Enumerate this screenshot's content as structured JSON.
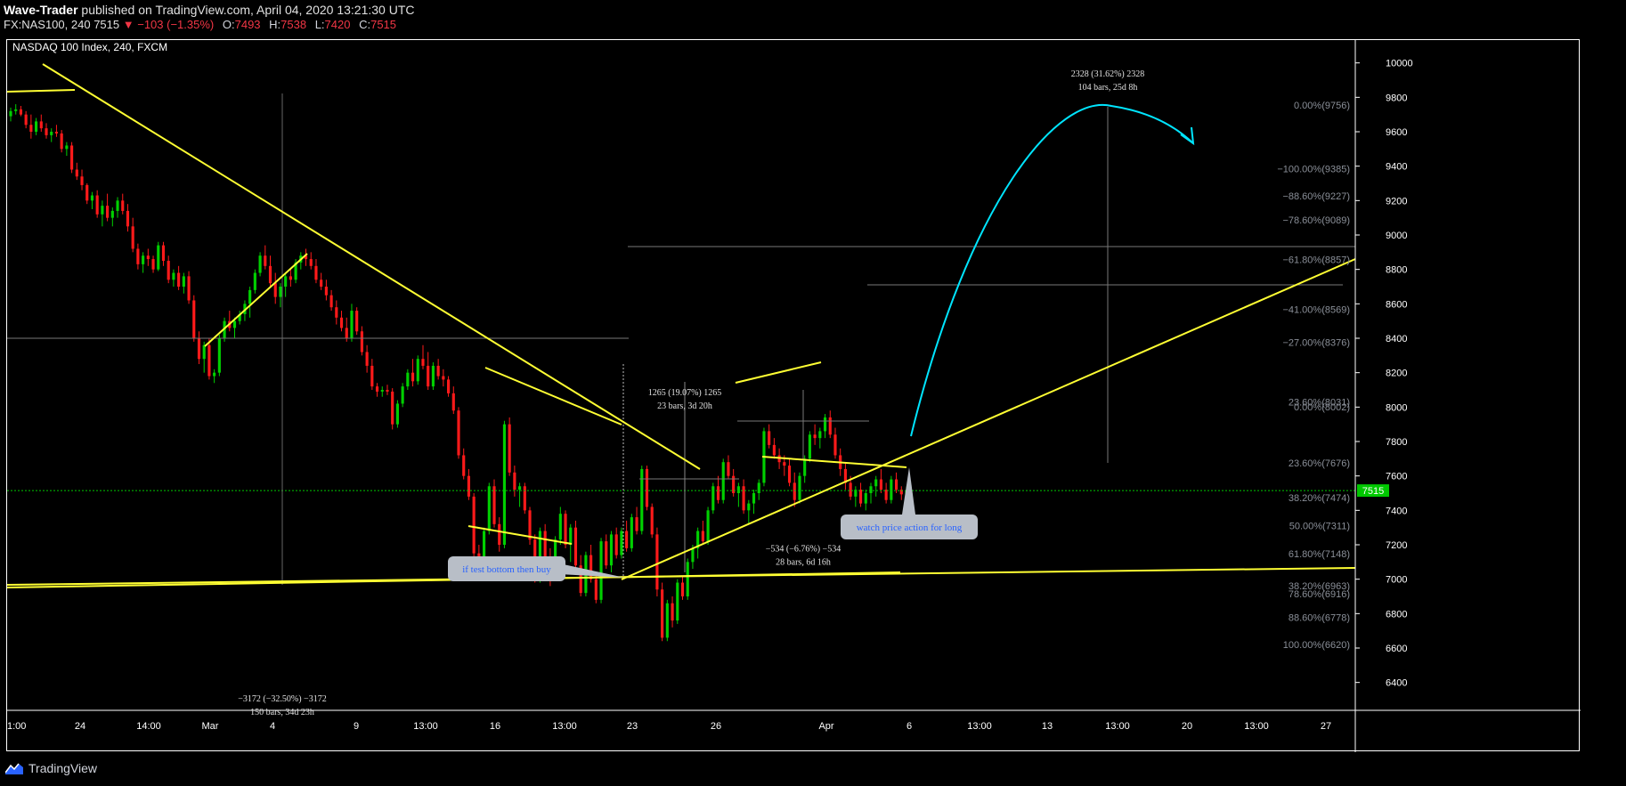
{
  "header": {
    "author": "Wave-Trader",
    "published_text": "published on TradingView.com, April 04, 2020 13:21:30 UTC",
    "symbol_line": "FX:NAS100, 240",
    "last": "7515",
    "change": "−103 (−1.35%)",
    "o_label": "O:",
    "o": "7493",
    "h_label": "H:",
    "h": "7538",
    "l_label": "L:",
    "l": "7420",
    "c_label": "C:",
    "c": "7515"
  },
  "chart_title": "NASDAQ 100 Index, 240, FXCM",
  "footer": {
    "brand": "TradingView"
  },
  "colors": {
    "up": "#00d000",
    "down": "#ff1a1a",
    "trend": "#ffff33",
    "projection": "#00e5ff",
    "price_line": "#00c800",
    "note_bg": "#b8bec7",
    "note_text": "#2962ff"
  },
  "chart_data": {
    "type": "candlestick",
    "price_axis": {
      "min": 6300,
      "max": 10050,
      "ticks": [
        6400,
        6600,
        6800,
        7000,
        7200,
        7400,
        7600,
        7800,
        8000,
        8200,
        8400,
        8600,
        8800,
        9000,
        9200,
        9400,
        9600,
        9800,
        10000
      ]
    },
    "time_axis": [
      "1:00",
      "24",
      "14:00",
      "Mar",
      "4",
      "9",
      "13:00",
      "16",
      "13:00",
      "23",
      "26",
      "Apr",
      "6",
      "13:00",
      "13",
      "13:00",
      "20",
      "13:00",
      "27"
    ],
    "current_price": 7515,
    "fib_levels": [
      {
        "label": "0.00%(9756)",
        "price": 9756
      },
      {
        "label": "−100.00%(9385)",
        "price": 9385
      },
      {
        "label": "−88.60%(9227)",
        "price": 9227
      },
      {
        "label": "−78.60%(9089)",
        "price": 9089
      },
      {
        "label": "−61.80%(8857)",
        "price": 8857
      },
      {
        "label": "−41.00%(8569)",
        "price": 8569
      },
      {
        "label": "−27.00%(8376)",
        "price": 8376
      },
      {
        "label": "23.60%(8031)",
        "price": 8031
      },
      {
        "label": "0.00%(8002)",
        "price": 8002
      },
      {
        "label": "23.60%(7676)",
        "price": 7676
      },
      {
        "label": "38.20%(7474)",
        "price": 7474
      },
      {
        "label": "50.00%(7311)",
        "price": 7311
      },
      {
        "label": "61.80%(7148)",
        "price": 7148
      },
      {
        "label": "38.20%(6963)",
        "price": 6963
      },
      {
        "label": "78.60%(6916)",
        "price": 6916
      },
      {
        "label": "88.60%(6778)",
        "price": 6778
      },
      {
        "label": "100.00%(6620)",
        "price": 6620
      }
    ],
    "measures": [
      {
        "line1": "2328 (31.62%) 2328",
        "line2": "104 bars, 25d 8h",
        "price": 9920
      },
      {
        "line1": "1265 (19.07%) 1265",
        "line2": "23 bars, 3d 20h",
        "price": 8070
      },
      {
        "line1": "−534 (−6.76%) −534",
        "line2": "28 bars, 6d 16h",
        "price": 7160
      },
      {
        "line1": "−3172 (−32.50%) −3172",
        "line2": "150 bars, 34d 23h",
        "price": 6290
      }
    ],
    "notes": [
      {
        "text": "if test bottom then buy"
      },
      {
        "text": "watch price action for long"
      }
    ],
    "candles": [
      [
        9690,
        9740,
        9660,
        9720
      ],
      [
        9720,
        9760,
        9700,
        9730
      ],
      [
        9730,
        9750,
        9690,
        9700
      ],
      [
        9700,
        9720,
        9620,
        9640
      ],
      [
        9640,
        9700,
        9560,
        9600
      ],
      [
        9600,
        9680,
        9580,
        9660
      ],
      [
        9660,
        9700,
        9600,
        9620
      ],
      [
        9620,
        9650,
        9560,
        9580
      ],
      [
        9580,
        9620,
        9540,
        9600
      ],
      [
        9600,
        9640,
        9570,
        9590
      ],
      [
        9590,
        9610,
        9480,
        9500
      ],
      [
        9500,
        9540,
        9460,
        9520
      ],
      [
        9520,
        9540,
        9360,
        9380
      ],
      [
        9380,
        9420,
        9320,
        9340
      ],
      [
        9340,
        9380,
        9260,
        9290
      ],
      [
        9290,
        9300,
        9180,
        9200
      ],
      [
        9200,
        9250,
        9150,
        9230
      ],
      [
        9230,
        9260,
        9100,
        9120
      ],
      [
        9120,
        9200,
        9050,
        9170
      ],
      [
        9170,
        9240,
        9080,
        9100
      ],
      [
        9100,
        9160,
        9050,
        9140
      ],
      [
        9140,
        9220,
        9100,
        9200
      ],
      [
        9200,
        9240,
        9120,
        9140
      ],
      [
        9140,
        9180,
        9020,
        9050
      ],
      [
        9050,
        9100,
        8900,
        8920
      ],
      [
        8920,
        8950,
        8800,
        8830
      ],
      [
        8830,
        8900,
        8780,
        8880
      ],
      [
        8880,
        8920,
        8820,
        8860
      ],
      [
        8860,
        8880,
        8780,
        8800
      ],
      [
        8800,
        8960,
        8790,
        8940
      ],
      [
        8940,
        8960,
        8820,
        8850
      ],
      [
        8850,
        8880,
        8720,
        8740
      ],
      [
        8740,
        8800,
        8700,
        8780
      ],
      [
        8780,
        8820,
        8680,
        8700
      ],
      [
        8700,
        8780,
        8660,
        8760
      ],
      [
        8760,
        8790,
        8600,
        8620
      ],
      [
        8620,
        8650,
        8380,
        8400
      ],
      [
        8400,
        8440,
        8250,
        8280
      ],
      [
        8280,
        8380,
        8200,
        8360
      ],
      [
        8360,
        8400,
        8160,
        8180
      ],
      [
        8180,
        8220,
        8140,
        8200
      ],
      [
        8200,
        8420,
        8180,
        8400
      ],
      [
        8400,
        8520,
        8380,
        8500
      ],
      [
        8500,
        8560,
        8440,
        8460
      ],
      [
        8460,
        8520,
        8400,
        8500
      ],
      [
        8500,
        8560,
        8480,
        8540
      ],
      [
        8540,
        8620,
        8500,
        8600
      ],
      [
        8600,
        8700,
        8520,
        8680
      ],
      [
        8680,
        8800,
        8660,
        8780
      ],
      [
        8780,
        8900,
        8760,
        8880
      ],
      [
        8880,
        8940,
        8800,
        8820
      ],
      [
        8820,
        8880,
        8700,
        8720
      ],
      [
        8720,
        8780,
        8600,
        8640
      ],
      [
        8640,
        8720,
        8580,
        8700
      ],
      [
        8700,
        8780,
        8640,
        8760
      ],
      [
        8760,
        8800,
        8700,
        8740
      ],
      [
        8740,
        8860,
        8720,
        8840
      ],
      [
        8840,
        8900,
        8800,
        8880
      ],
      [
        8880,
        8920,
        8820,
        8860
      ],
      [
        8860,
        8900,
        8800,
        8820
      ],
      [
        8820,
        8860,
        8720,
        8740
      ],
      [
        8740,
        8780,
        8680,
        8700
      ],
      [
        8700,
        8740,
        8620,
        8650
      ],
      [
        8650,
        8680,
        8560,
        8580
      ],
      [
        8580,
        8620,
        8480,
        8520
      ],
      [
        8520,
        8560,
        8440,
        8460
      ],
      [
        8460,
        8520,
        8380,
        8400
      ],
      [
        8400,
        8600,
        8380,
        8560
      ],
      [
        8560,
        8580,
        8420,
        8440
      ],
      [
        8440,
        8470,
        8300,
        8320
      ],
      [
        8320,
        8360,
        8200,
        8240
      ],
      [
        8240,
        8280,
        8100,
        8120
      ],
      [
        8120,
        8140,
        8060,
        8090
      ],
      [
        8090,
        8120,
        8060,
        8100
      ],
      [
        8100,
        8130,
        8070,
        8090
      ],
      [
        8090,
        8110,
        7870,
        7900
      ],
      [
        7900,
        8040,
        7880,
        8020
      ],
      [
        8020,
        8140,
        8000,
        8120
      ],
      [
        8120,
        8220,
        8100,
        8200
      ],
      [
        8200,
        8280,
        8120,
        8150
      ],
      [
        8150,
        8300,
        8130,
        8280
      ],
      [
        8280,
        8360,
        8220,
        8240
      ],
      [
        8240,
        8320,
        8100,
        8120
      ],
      [
        8120,
        8260,
        8100,
        8240
      ],
      [
        8240,
        8280,
        8160,
        8180
      ],
      [
        8180,
        8220,
        8120,
        8160
      ],
      [
        8160,
        8180,
        8060,
        8080
      ],
      [
        8080,
        8120,
        7960,
        7980
      ],
      [
        7980,
        8000,
        7700,
        7720
      ],
      [
        7720,
        7760,
        7580,
        7600
      ],
      [
        7600,
        7640,
        7460,
        7480
      ],
      [
        7480,
        7500,
        7120,
        7150
      ],
      [
        7150,
        7200,
        7050,
        7080
      ],
      [
        7080,
        7300,
        7060,
        7280
      ],
      [
        7280,
        7560,
        7260,
        7540
      ],
      [
        7540,
        7580,
        7300,
        7320
      ],
      [
        7320,
        7360,
        7160,
        7200
      ],
      [
        7200,
        7920,
        7180,
        7900
      ],
      [
        7900,
        7940,
        7600,
        7620
      ],
      [
        7620,
        7660,
        7480,
        7520
      ],
      [
        7520,
        7560,
        7420,
        7540
      ],
      [
        7540,
        7560,
        7380,
        7400
      ],
      [
        7400,
        7420,
        7200,
        7230
      ],
      [
        7230,
        7260,
        6980,
        7000
      ],
      [
        7000,
        7300,
        6980,
        7280
      ],
      [
        7280,
        7320,
        7100,
        7120
      ],
      [
        7120,
        7180,
        6960,
        7020
      ],
      [
        7020,
        7250,
        7000,
        7230
      ],
      [
        7230,
        7420,
        7200,
        7380
      ],
      [
        7380,
        7400,
        7180,
        7200
      ],
      [
        7200,
        7320,
        7100,
        7300
      ],
      [
        7300,
        7340,
        7060,
        7080
      ],
      [
        7080,
        7140,
        6900,
        6920
      ],
      [
        6920,
        7160,
        6900,
        7140
      ],
      [
        7140,
        7200,
        6980,
        7000
      ],
      [
        7000,
        7040,
        6860,
        6880
      ],
      [
        6880,
        7240,
        6860,
        7220
      ],
      [
        7220,
        7260,
        7060,
        7080
      ],
      [
        7080,
        7280,
        7040,
        7260
      ],
      [
        7260,
        7300,
        7120,
        7140
      ],
      [
        7140,
        7300,
        7120,
        7280
      ],
      [
        7280,
        7340,
        7160,
        7180
      ],
      [
        7180,
        7380,
        7160,
        7360
      ],
      [
        7360,
        7420,
        7260,
        7280
      ],
      [
        7280,
        7660,
        7260,
        7640
      ],
      [
        7640,
        7660,
        7400,
        7420
      ],
      [
        7420,
        7440,
        7240,
        7260
      ],
      [
        7260,
        7300,
        6900,
        6940
      ],
      [
        6940,
        6980,
        6640,
        6660
      ],
      [
        6660,
        6880,
        6640,
        6860
      ],
      [
        6860,
        6900,
        6720,
        6760
      ],
      [
        6760,
        7000,
        6740,
        6980
      ],
      [
        6980,
        7020,
        6880,
        6900
      ],
      [
        6900,
        7120,
        6880,
        7100
      ],
      [
        7100,
        7200,
        7060,
        7180
      ],
      [
        7180,
        7300,
        7120,
        7280
      ],
      [
        7280,
        7340,
        7200,
        7220
      ],
      [
        7220,
        7420,
        7200,
        7400
      ],
      [
        7400,
        7560,
        7380,
        7540
      ],
      [
        7540,
        7600,
        7440,
        7460
      ],
      [
        7460,
        7700,
        7440,
        7680
      ],
      [
        7680,
        7720,
        7580,
        7600
      ],
      [
        7600,
        7640,
        7480,
        7500
      ],
      [
        7500,
        7560,
        7420,
        7540
      ],
      [
        7540,
        7580,
        7380,
        7400
      ],
      [
        7400,
        7460,
        7320,
        7440
      ],
      [
        7440,
        7520,
        7380,
        7500
      ],
      [
        7500,
        7580,
        7460,
        7560
      ],
      [
        7560,
        7880,
        7540,
        7860
      ],
      [
        7860,
        7900,
        7760,
        7780
      ],
      [
        7780,
        7820,
        7700,
        7720
      ],
      [
        7720,
        7760,
        7640,
        7680
      ],
      [
        7680,
        7720,
        7600,
        7660
      ],
      [
        7660,
        7700,
        7540,
        7560
      ],
      [
        7560,
        7620,
        7420,
        7460
      ],
      [
        7460,
        7620,
        7440,
        7600
      ],
      [
        7600,
        7720,
        7560,
        7700
      ],
      [
        7700,
        7860,
        7680,
        7840
      ],
      [
        7840,
        7900,
        7780,
        7820
      ],
      [
        7820,
        7880,
        7760,
        7860
      ],
      [
        7860,
        7960,
        7820,
        7940
      ],
      [
        7940,
        7980,
        7820,
        7840
      ],
      [
        7840,
        7880,
        7700,
        7720
      ],
      [
        7720,
        7760,
        7600,
        7640
      ],
      [
        7640,
        7680,
        7520,
        7560
      ],
      [
        7560,
        7600,
        7460,
        7480
      ],
      [
        7480,
        7540,
        7420,
        7520
      ],
      [
        7520,
        7560,
        7420,
        7440
      ],
      [
        7440,
        7520,
        7400,
        7500
      ],
      [
        7500,
        7560,
        7440,
        7540
      ],
      [
        7540,
        7600,
        7480,
        7580
      ],
      [
        7580,
        7640,
        7500,
        7520
      ],
      [
        7520,
        7560,
        7440,
        7460
      ],
      [
        7460,
        7600,
        7440,
        7580
      ],
      [
        7580,
        7620,
        7500,
        7520
      ],
      [
        7520,
        7540,
        7460,
        7493
      ],
      [
        7493,
        7538,
        7420,
        7515
      ]
    ]
  }
}
